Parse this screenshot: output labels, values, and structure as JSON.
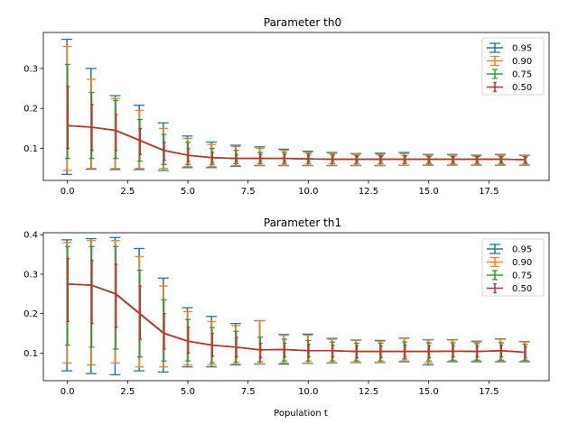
{
  "chart_data": [
    {
      "type": "line",
      "title": "Parameter th0",
      "xlabel": "",
      "ylabel": "",
      "xlim": [
        -1,
        20
      ],
      "ylim": [
        0.02,
        0.39
      ],
      "xticks": [
        0.0,
        2.5,
        5.0,
        7.5,
        10.0,
        12.5,
        15.0,
        17.5
      ],
      "xtick_labels": [
        "0.0",
        "2.5",
        "5.0",
        "7.5",
        "10.0",
        "12.5",
        "15.0",
        "17.5"
      ],
      "yticks": [
        0.1,
        0.2,
        0.3
      ],
      "ytick_labels": [
        "0.1",
        "0.2",
        "0.3"
      ],
      "legend": "top-right",
      "grid": false,
      "x": [
        0,
        1,
        2,
        3,
        4,
        5,
        6,
        7,
        8,
        9,
        10,
        11,
        12,
        13,
        14,
        15,
        16,
        17,
        18,
        19
      ],
      "median": [
        0.157,
        0.153,
        0.145,
        0.12,
        0.095,
        0.083,
        0.077,
        0.075,
        0.075,
        0.075,
        0.074,
        0.073,
        0.073,
        0.073,
        0.073,
        0.073,
        0.073,
        0.073,
        0.073,
        0.072
      ],
      "series": [
        {
          "name": "0.95",
          "color": "#1f77b4",
          "lower": [
            0.035,
            0.048,
            0.047,
            0.047,
            0.045,
            0.052,
            0.052,
            0.055,
            0.057,
            0.057,
            0.057,
            0.057,
            0.057,
            0.057,
            0.058,
            0.058,
            0.058,
            0.058,
            0.058,
            0.058
          ],
          "upper": [
            0.373,
            0.3,
            0.232,
            0.208,
            0.164,
            0.131,
            0.116,
            0.108,
            0.104,
            0.098,
            0.093,
            0.09,
            0.087,
            0.088,
            0.09,
            0.085,
            0.085,
            0.083,
            0.085,
            0.083
          ]
        },
        {
          "name": "0.90",
          "color": "#ff7f0e",
          "lower": [
            0.045,
            0.05,
            0.05,
            0.05,
            0.05,
            0.055,
            0.055,
            0.057,
            0.058,
            0.058,
            0.058,
            0.058,
            0.058,
            0.058,
            0.058,
            0.059,
            0.059,
            0.059,
            0.059,
            0.059
          ],
          "upper": [
            0.355,
            0.273,
            0.225,
            0.195,
            0.15,
            0.125,
            0.11,
            0.105,
            0.1,
            0.095,
            0.09,
            0.088,
            0.085,
            0.085,
            0.087,
            0.083,
            0.083,
            0.081,
            0.083,
            0.082
          ]
        },
        {
          "name": "0.75",
          "color": "#2ca02c",
          "lower": [
            0.075,
            0.075,
            0.075,
            0.068,
            0.06,
            0.06,
            0.06,
            0.062,
            0.062,
            0.062,
            0.062,
            0.062,
            0.062,
            0.062,
            0.062,
            0.062,
            0.062,
            0.062,
            0.062,
            0.062
          ],
          "upper": [
            0.31,
            0.24,
            0.22,
            0.172,
            0.135,
            0.115,
            0.1,
            0.095,
            0.09,
            0.09,
            0.087,
            0.085,
            0.082,
            0.082,
            0.082,
            0.08,
            0.08,
            0.08,
            0.08,
            0.08
          ]
        },
        {
          "name": "0.50",
          "color": "#d62728",
          "lower": [
            0.1,
            0.095,
            0.095,
            0.085,
            0.07,
            0.067,
            0.065,
            0.067,
            0.067,
            0.067,
            0.067,
            0.067,
            0.067,
            0.067,
            0.067,
            0.066,
            0.066,
            0.066,
            0.066,
            0.065
          ],
          "upper": [
            0.255,
            0.21,
            0.185,
            0.15,
            0.115,
            0.1,
            0.09,
            0.085,
            0.085,
            0.085,
            0.083,
            0.081,
            0.08,
            0.08,
            0.08,
            0.079,
            0.079,
            0.079,
            0.079,
            0.078
          ]
        }
      ]
    },
    {
      "type": "line",
      "title": "Parameter th1",
      "xlabel": "Population t",
      "ylabel": "",
      "xlim": [
        -1,
        20
      ],
      "ylim": [
        0.03,
        0.405
      ],
      "xticks": [
        0.0,
        2.5,
        5.0,
        7.5,
        10.0,
        12.5,
        15.0,
        17.5
      ],
      "xtick_labels": [
        "0.0",
        "2.5",
        "5.0",
        "7.5",
        "10.0",
        "12.5",
        "15.0",
        "17.5"
      ],
      "yticks": [
        0.1,
        0.2,
        0.3,
        0.4
      ],
      "ytick_labels": [
        "0.1",
        "0.2",
        "0.3",
        "0.4"
      ],
      "legend": "top-right",
      "grid": false,
      "x": [
        0,
        1,
        2,
        3,
        4,
        5,
        6,
        7,
        8,
        9,
        10,
        11,
        12,
        13,
        14,
        15,
        16,
        17,
        18,
        19
      ],
      "median": [
        0.275,
        0.272,
        0.25,
        0.2,
        0.15,
        0.13,
        0.12,
        0.115,
        0.108,
        0.109,
        0.106,
        0.106,
        0.104,
        0.104,
        0.104,
        0.104,
        0.105,
        0.104,
        0.106,
        0.102
      ],
      "series": [
        {
          "name": "0.95",
          "color": "#1f77b4",
          "lower": [
            0.055,
            0.048,
            0.045,
            0.055,
            0.052,
            0.065,
            0.065,
            0.07,
            0.072,
            0.072,
            0.074,
            0.075,
            0.076,
            0.076,
            0.078,
            0.07,
            0.078,
            0.078,
            0.078,
            0.078
          ],
          "upper": [
            0.387,
            0.39,
            0.393,
            0.365,
            0.29,
            0.215,
            0.193,
            0.175,
            0.182,
            0.147,
            0.148,
            0.137,
            0.133,
            0.132,
            0.138,
            0.134,
            0.134,
            0.13,
            0.136,
            0.129
          ]
        },
        {
          "name": "0.90",
          "color": "#ff7f0e",
          "lower": [
            0.075,
            0.07,
            0.075,
            0.065,
            0.065,
            0.07,
            0.07,
            0.072,
            0.073,
            0.075,
            0.075,
            0.076,
            0.077,
            0.077,
            0.08,
            0.075,
            0.08,
            0.08,
            0.08,
            0.08
          ],
          "upper": [
            0.38,
            0.385,
            0.385,
            0.345,
            0.27,
            0.205,
            0.18,
            0.17,
            0.182,
            0.145,
            0.145,
            0.135,
            0.132,
            0.13,
            0.137,
            0.133,
            0.133,
            0.128,
            0.135,
            0.128
          ]
        },
        {
          "name": "0.75",
          "color": "#2ca02c",
          "lower": [
            0.12,
            0.115,
            0.11,
            0.09,
            0.08,
            0.08,
            0.075,
            0.077,
            0.078,
            0.08,
            0.08,
            0.08,
            0.08,
            0.08,
            0.085,
            0.08,
            0.082,
            0.082,
            0.082,
            0.082
          ],
          "upper": [
            0.37,
            0.37,
            0.37,
            0.31,
            0.235,
            0.185,
            0.165,
            0.155,
            0.14,
            0.135,
            0.132,
            0.128,
            0.125,
            0.125,
            0.128,
            0.126,
            0.126,
            0.124,
            0.126,
            0.122
          ]
        },
        {
          "name": "0.50",
          "color": "#d62728",
          "lower": [
            0.18,
            0.175,
            0.165,
            0.135,
            0.11,
            0.1,
            0.092,
            0.09,
            0.088,
            0.09,
            0.09,
            0.09,
            0.088,
            0.088,
            0.09,
            0.088,
            0.09,
            0.09,
            0.09,
            0.088
          ],
          "upper": [
            0.34,
            0.335,
            0.325,
            0.27,
            0.2,
            0.165,
            0.15,
            0.14,
            0.125,
            0.125,
            0.122,
            0.12,
            0.118,
            0.118,
            0.12,
            0.118,
            0.12,
            0.118,
            0.12,
            0.116
          ]
        }
      ]
    }
  ]
}
